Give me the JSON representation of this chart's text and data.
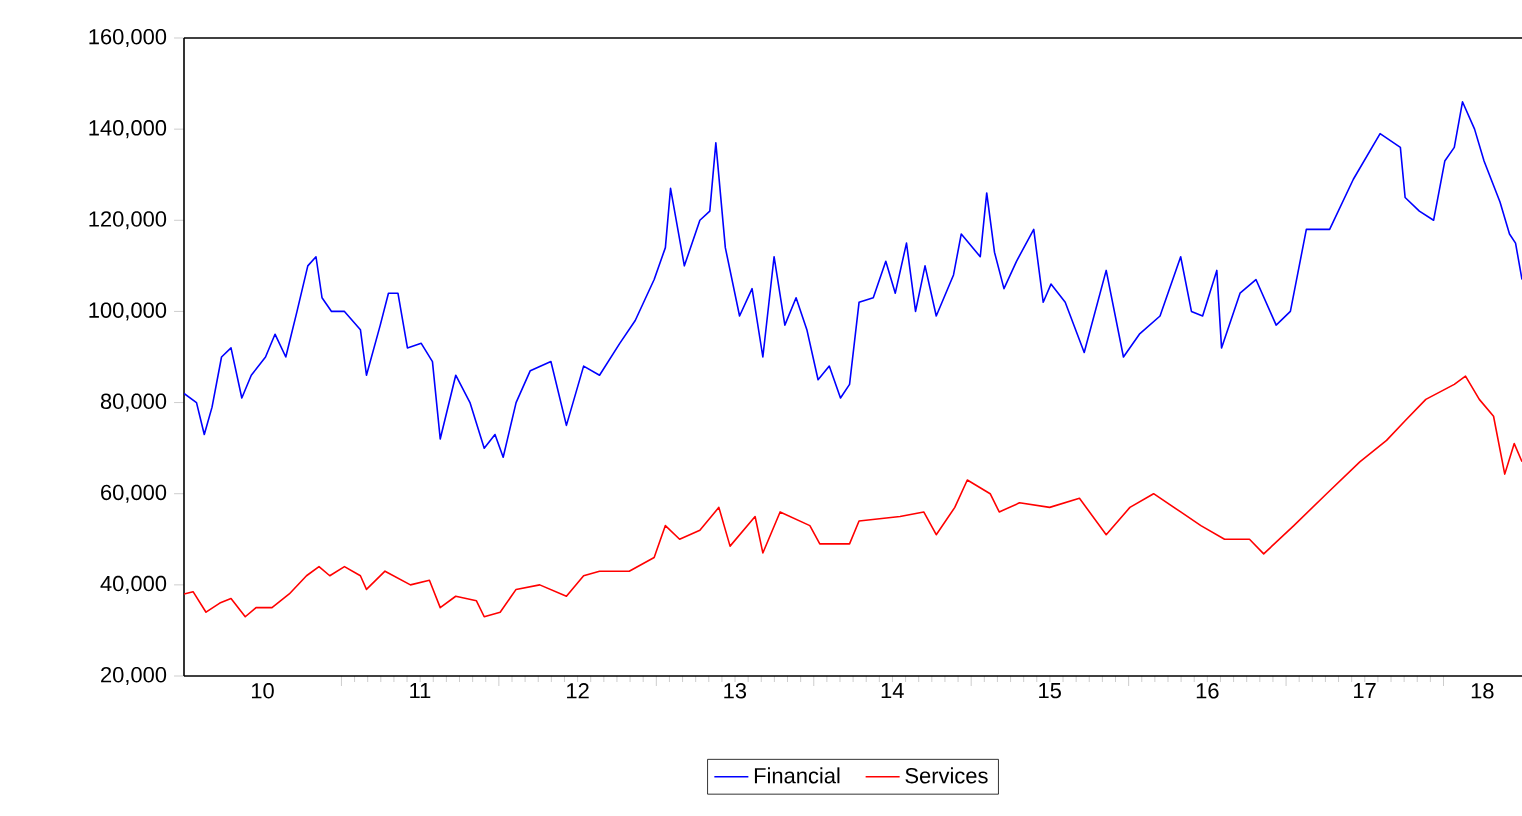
{
  "chart_data": {
    "type": "line",
    "legend": "bottom",
    "grid": false,
    "xlim": [
      "2010-01-01",
      "2018-07-02"
    ],
    "xticks": [
      {
        "value": "2011-01-01",
        "label": null
      },
      {
        "value": "2012-01-01",
        "label": null
      },
      {
        "value": "2013-01-01",
        "label": null
      },
      {
        "value": "2014-01-01",
        "label": null
      },
      {
        "value": "2015-01-01",
        "label": null
      },
      {
        "value": "2016-01-01",
        "label": null
      },
      {
        "value": "2017-01-01",
        "label": null
      },
      {
        "value": "2018-01-01",
        "label": null
      },
      {
        "value": "2010-07-02",
        "label": "10"
      },
      {
        "value": "2011-07-02",
        "label": "11"
      },
      {
        "value": "2012-07-02",
        "label": "12"
      },
      {
        "value": "2013-07-02",
        "label": "13"
      },
      {
        "value": "2014-07-02",
        "label": "14"
      },
      {
        "value": "2015-07-02",
        "label": "15"
      },
      {
        "value": "2016-07-02",
        "label": "16"
      },
      {
        "value": "2017-07-02",
        "label": "17"
      },
      {
        "value": "2018-04-01",
        "label": "18"
      }
    ],
    "ylim": [
      20000,
      160000
    ],
    "yticks": [
      {
        "value": 20000,
        "label": "20,000"
      },
      {
        "value": 40000,
        "label": "40,000"
      },
      {
        "value": 60000,
        "label": "60,000"
      },
      {
        "value": 80000,
        "label": "80,000"
      },
      {
        "value": 100000,
        "label": "100,000"
      },
      {
        "value": 120000,
        "label": "120,000"
      },
      {
        "value": 140000,
        "label": "140,000"
      },
      {
        "value": 160000,
        "label": "160,000"
      }
    ],
    "series": [
      {
        "name": "Financial",
        "color": "#0000ff",
        "x": [
          "2010-01-01",
          "2010-01-30",
          "2010-02-17",
          "2010-03-07",
          "2010-03-29",
          "2010-04-20",
          "2010-05-15",
          "2010-06-06",
          "2010-07-09",
          "2010-07-31",
          "2010-08-25",
          "2010-09-20",
          "2010-10-15",
          "2010-11-03",
          "2010-11-17",
          "2010-12-09",
          "2011-01-08",
          "2011-02-14",
          "2011-02-28",
          "2011-04-01",
          "2011-04-20",
          "2011-05-12",
          "2011-06-03",
          "2011-07-05",
          "2011-07-31",
          "2011-08-18",
          "2011-09-23",
          "2011-10-26",
          "2011-11-28",
          "2011-12-23",
          "2012-01-11",
          "2012-02-10",
          "2012-03-14",
          "2012-05-01",
          "2012-06-06",
          "2012-07-16",
          "2012-08-22",
          "2012-10-08",
          "2012-11-13",
          "2012-12-27",
          "2013-01-22",
          "2013-02-03",
          "2013-03-07",
          "2013-04-12",
          "2013-05-05",
          "2013-05-19",
          "2013-06-10",
          "2013-07-13",
          "2013-08-11",
          "2013-09-05",
          "2013-10-01",
          "2013-10-26",
          "2013-11-21",
          "2013-12-16",
          "2014-01-11",
          "2014-02-06",
          "2014-03-04",
          "2014-03-25",
          "2014-04-16",
          "2014-05-19",
          "2014-06-17",
          "2014-07-09",
          "2014-08-04",
          "2014-08-25",
          "2014-09-16",
          "2014-10-12",
          "2014-11-21",
          "2014-12-09",
          "2015-01-22",
          "2015-02-06",
          "2015-02-24",
          "2015-03-18",
          "2015-04-16",
          "2015-05-26",
          "2015-06-17",
          "2015-07-05",
          "2015-08-07",
          "2015-09-20",
          "2015-11-10",
          "2015-12-20",
          "2016-01-26",
          "2016-03-14",
          "2016-05-01",
          "2016-05-26",
          "2016-06-21",
          "2016-07-24",
          "2016-08-04",
          "2016-09-16",
          "2016-10-23",
          "2016-12-09",
          "2017-01-11",
          "2017-02-17",
          "2017-04-12",
          "2017-06-06",
          "2017-08-07",
          "2017-09-23",
          "2017-10-04",
          "2017-11-06",
          "2017-12-09",
          "2018-01-04",
          "2018-01-26",
          "2018-02-14",
          "2018-03-14",
          "2018-04-05",
          "2018-05-12",
          "2018-06-03",
          "2018-06-17",
          "2018-07-02"
        ],
        "values": [
          82000,
          80000,
          73000,
          79000,
          90000,
          92000,
          81000,
          86000,
          90000,
          95000,
          90000,
          100000,
          110000,
          112000,
          103000,
          100000,
          100000,
          96000,
          86000,
          97000,
          104000,
          104000,
          92000,
          93000,
          89000,
          72000,
          86000,
          80000,
          70000,
          73000,
          68000,
          80000,
          87000,
          89000,
          75000,
          88000,
          86000,
          93000,
          98000,
          107000,
          114000,
          127000,
          110000,
          120000,
          122000,
          137000,
          114000,
          99000,
          105000,
          90000,
          112000,
          97000,
          103000,
          96000,
          85000,
          88000,
          81000,
          84000,
          102000,
          103000,
          111000,
          104000,
          115000,
          100000,
          110000,
          99000,
          108000,
          117000,
          112000,
          126000,
          113000,
          105000,
          111000,
          118000,
          102000,
          106000,
          102000,
          91000,
          109000,
          90000,
          95000,
          99000,
          112000,
          100000,
          99000,
          109000,
          92000,
          104000,
          107000,
          97000,
          100000,
          118000,
          118000,
          129000,
          139000,
          136000,
          125000,
          122000,
          120000,
          133000,
          136000,
          146000,
          140000,
          133000,
          124000,
          117000,
          115000,
          107000
        ]
      },
      {
        "name": "Services",
        "color": "#ff0000",
        "x": [
          "2010-01-01",
          "2010-01-22",
          "2010-02-21",
          "2010-03-25",
          "2010-04-20",
          "2010-05-23",
          "2010-06-17",
          "2010-07-24",
          "2010-09-02",
          "2010-10-12",
          "2010-11-10",
          "2010-12-05",
          "2011-01-08",
          "2011-02-14",
          "2011-02-28",
          "2011-04-12",
          "2011-06-10",
          "2011-07-24",
          "2011-08-18",
          "2011-09-23",
          "2011-11-10",
          "2011-11-28",
          "2012-01-04",
          "2012-02-10",
          "2012-04-05",
          "2012-06-06",
          "2012-07-16",
          "2012-08-22",
          "2012-10-30",
          "2012-12-27",
          "2013-01-22",
          "2013-02-24",
          "2013-04-12",
          "2013-05-26",
          "2013-06-21",
          "2013-08-18",
          "2013-09-05",
          "2013-10-15",
          "2013-12-23",
          "2014-01-15",
          "2014-03-25",
          "2014-04-16",
          "2014-07-20",
          "2014-09-13",
          "2014-10-12",
          "2014-11-24",
          "2014-12-23",
          "2015-02-14",
          "2015-03-07",
          "2015-04-23",
          "2015-07-02",
          "2015-09-09",
          "2015-11-10",
          "2016-01-04",
          "2016-02-28",
          "2016-05-01",
          "2016-06-17",
          "2016-08-11",
          "2016-10-08",
          "2016-11-10",
          "2017-01-19",
          "2017-04-05",
          "2017-06-21",
          "2017-08-22",
          "2017-10-04",
          "2017-11-21",
          "2018-01-26",
          "2018-02-21",
          "2018-03-25",
          "2018-04-27",
          "2018-05-23",
          "2018-06-14",
          "2018-07-02"
        ],
        "values": [
          38000,
          38500,
          34000,
          36000,
          37000,
          33000,
          35000,
          35000,
          38000,
          42000,
          44000,
          42000,
          44000,
          42000,
          39000,
          43000,
          40000,
          41000,
          35000,
          37500,
          36500,
          33000,
          34000,
          39000,
          40000,
          37500,
          42000,
          43000,
          43000,
          46000,
          53000,
          50000,
          52000,
          57000,
          48500,
          55000,
          47000,
          56000,
          53000,
          49000,
          49000,
          54000,
          55000,
          56000,
          51000,
          57000,
          63000,
          60000,
          56000,
          58000,
          57000,
          59000,
          51000,
          57000,
          60000,
          56000,
          53000,
          50000,
          50000,
          46800,
          53000,
          60000,
          67000,
          71700,
          76000,
          80700,
          84000,
          85800,
          80700,
          77000,
          64300,
          71000,
          67000
        ]
      }
    ]
  }
}
